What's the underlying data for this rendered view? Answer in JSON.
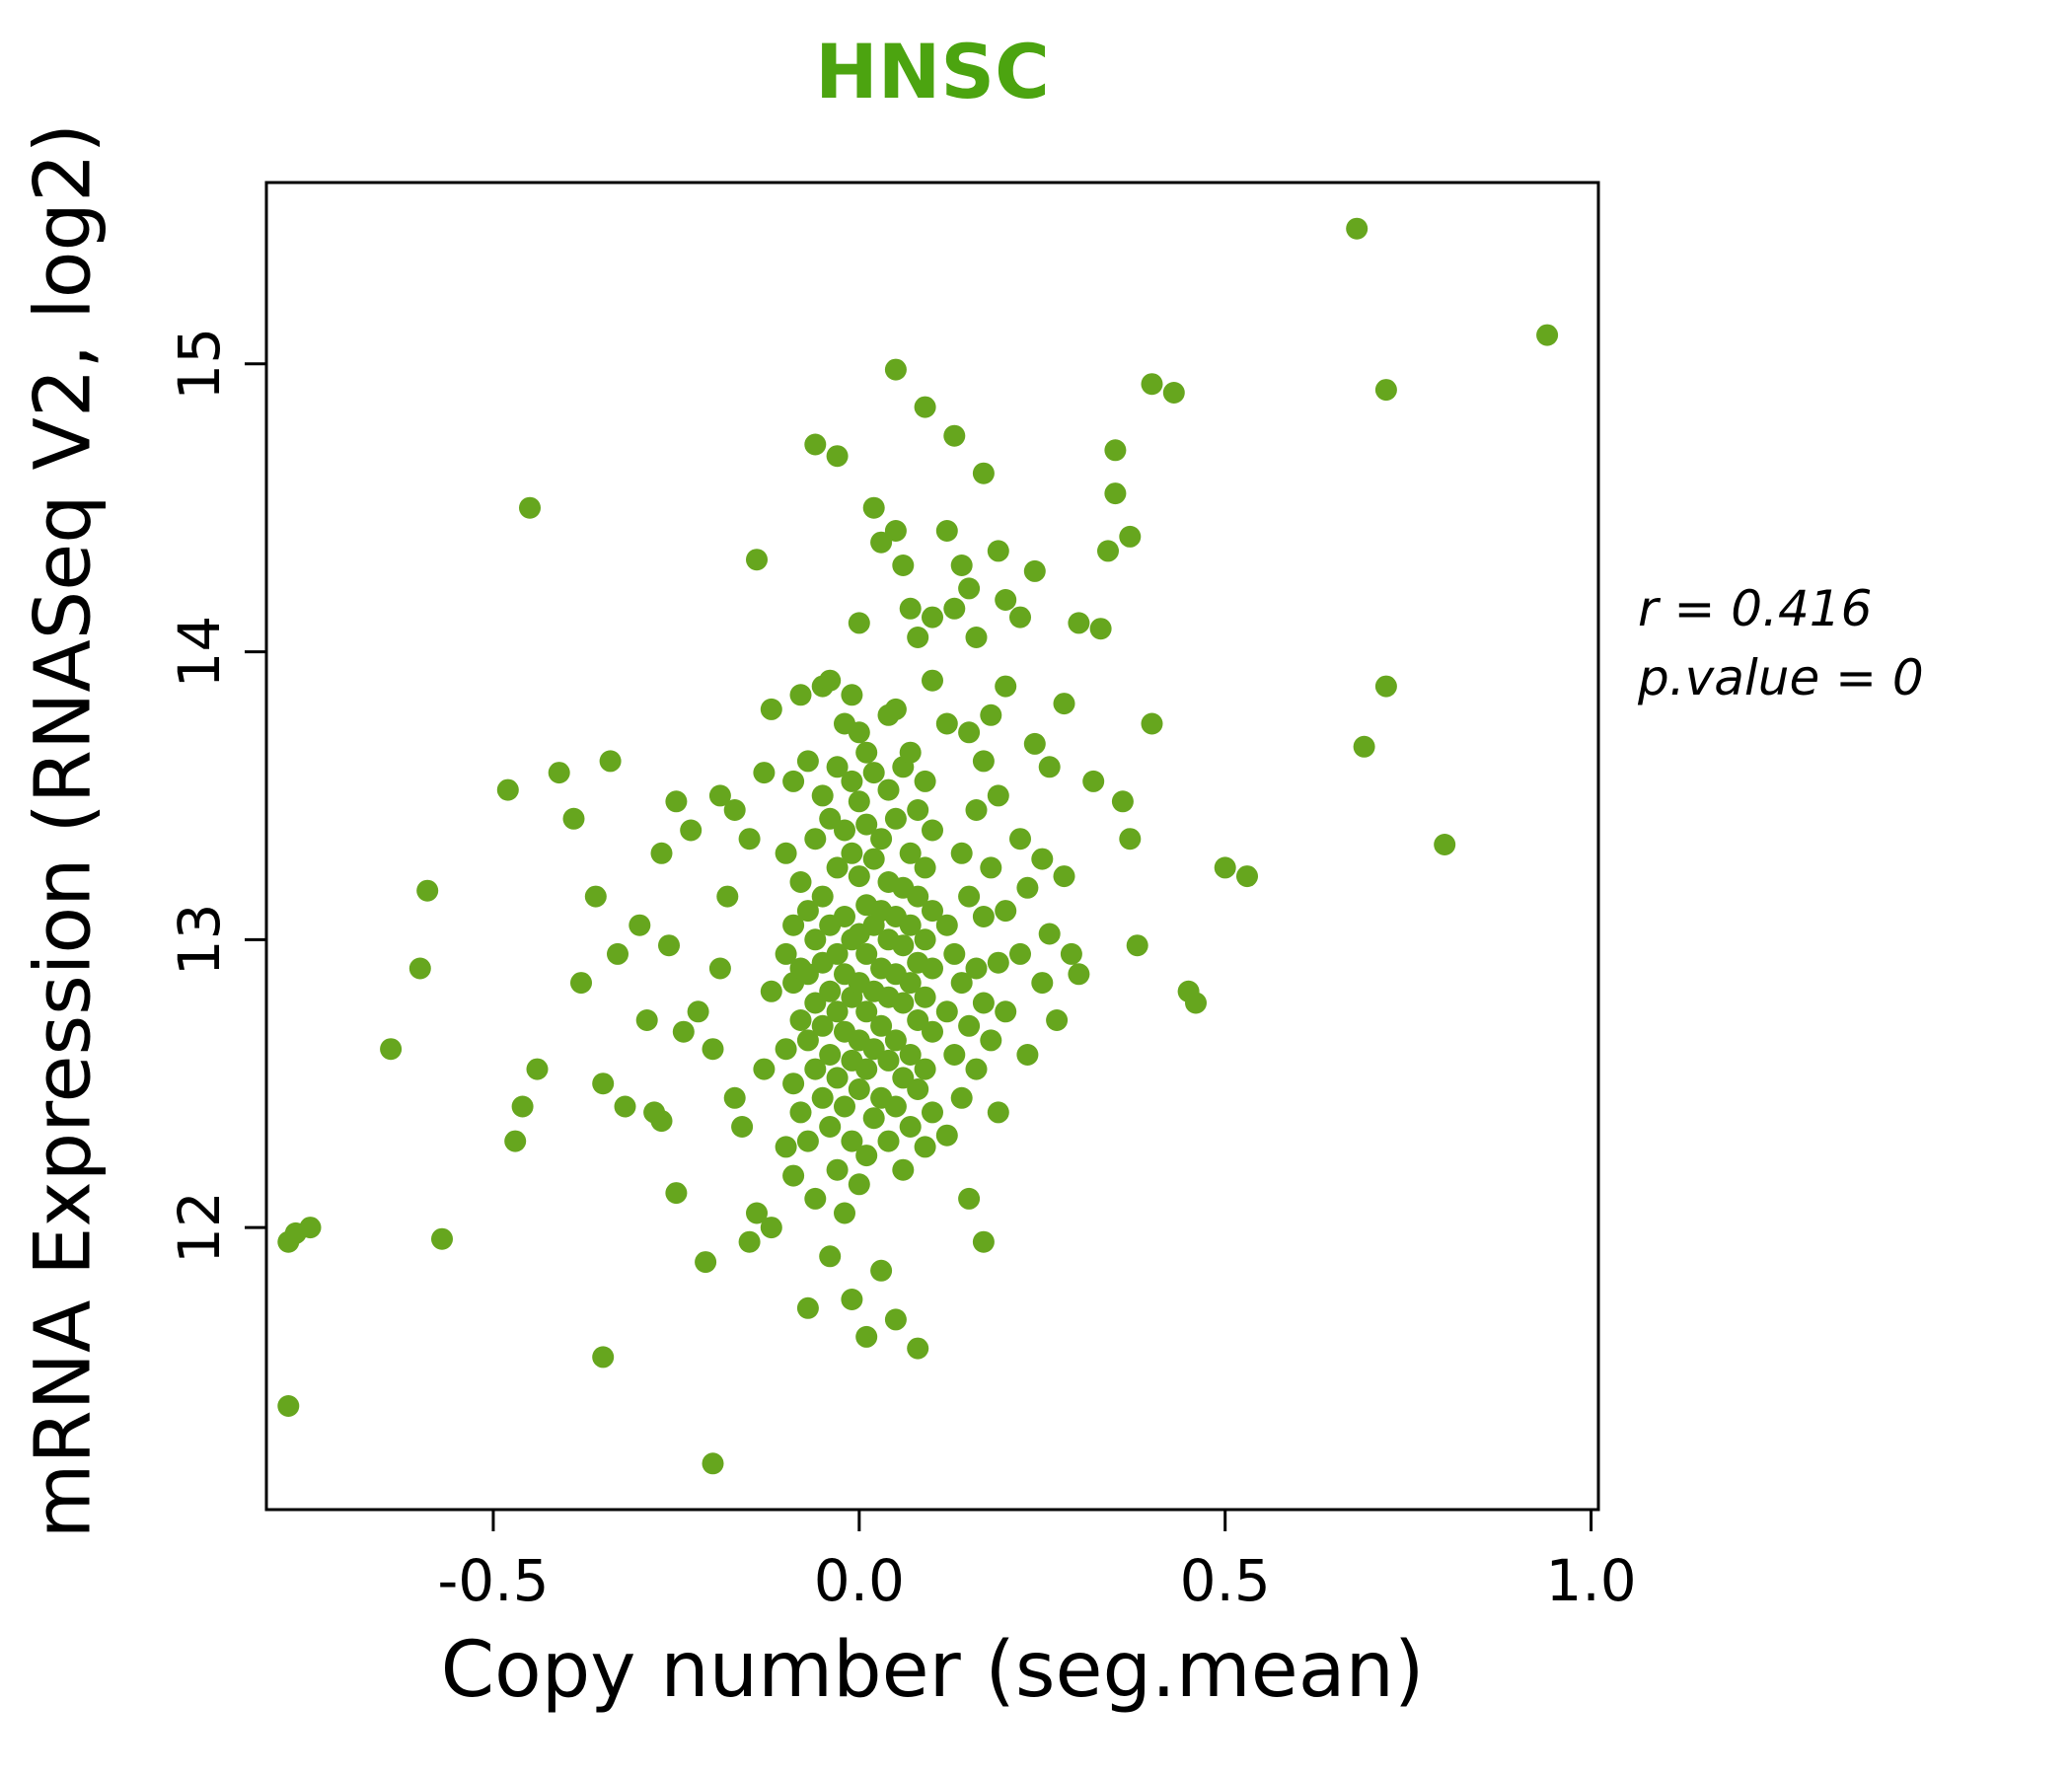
{
  "chart_data": {
    "type": "scatter",
    "title": "HNSC",
    "xlabel": "Copy number (seg.mean)",
    "ylabel": "mRNA Expression (RNASeq V2, log2)",
    "xlim": [
      -0.81,
      1.01
    ],
    "ylim": [
      11.02,
      15.63
    ],
    "grid": false,
    "x_ticks": {
      "values": [
        -0.5,
        0.0,
        0.5,
        1.0
      ],
      "labels": [
        "-0.5",
        "0.0",
        "0.5",
        "1.0"
      ]
    },
    "y_ticks": {
      "values": [
        12,
        13,
        14,
        15
      ],
      "labels": [
        "12",
        "13",
        "14",
        "15"
      ]
    },
    "annotation": {
      "r_text": "r = 0.416",
      "p_text": "p.value = 0"
    },
    "point_color": "#66A61E",
    "title_color": "#4CA410",
    "points": [
      [
        -0.78,
        11.38
      ],
      [
        -0.78,
        11.95
      ],
      [
        -0.77,
        11.98
      ],
      [
        -0.75,
        12.0
      ],
      [
        -0.64,
        12.62
      ],
      [
        -0.6,
        12.9
      ],
      [
        -0.59,
        13.17
      ],
      [
        -0.57,
        11.96
      ],
      [
        -0.48,
        13.52
      ],
      [
        -0.47,
        12.3
      ],
      [
        -0.46,
        12.42
      ],
      [
        -0.45,
        14.5
      ],
      [
        -0.44,
        12.55
      ],
      [
        -0.41,
        13.58
      ],
      [
        -0.39,
        13.42
      ],
      [
        -0.38,
        12.85
      ],
      [
        -0.36,
        13.15
      ],
      [
        -0.35,
        11.55
      ],
      [
        -0.35,
        12.5
      ],
      [
        -0.34,
        13.62
      ],
      [
        -0.33,
        12.95
      ],
      [
        -0.32,
        12.42
      ],
      [
        -0.3,
        13.05
      ],
      [
        -0.29,
        12.72
      ],
      [
        -0.28,
        12.4
      ],
      [
        -0.27,
        12.37
      ],
      [
        -0.27,
        13.3
      ],
      [
        -0.26,
        12.98
      ],
      [
        -0.25,
        13.48
      ],
      [
        -0.25,
        12.12
      ],
      [
        -0.24,
        12.68
      ],
      [
        -0.23,
        13.38
      ],
      [
        -0.22,
        12.75
      ],
      [
        -0.21,
        11.88
      ],
      [
        -0.2,
        12.62
      ],
      [
        -0.2,
        11.18
      ],
      [
        -0.19,
        13.5
      ],
      [
        -0.19,
        12.9
      ],
      [
        -0.18,
        13.15
      ],
      [
        -0.17,
        12.45
      ],
      [
        -0.17,
        13.45
      ],
      [
        -0.16,
        12.35
      ],
      [
        -0.15,
        11.95
      ],
      [
        -0.15,
        13.35
      ],
      [
        -0.14,
        14.32
      ],
      [
        -0.14,
        12.05
      ],
      [
        -0.13,
        13.58
      ],
      [
        -0.13,
        12.55
      ],
      [
        -0.12,
        12.0
      ],
      [
        -0.12,
        13.8
      ],
      [
        -0.12,
        12.82
      ],
      [
        -0.1,
        12.28
      ],
      [
        -0.1,
        12.62
      ],
      [
        -0.1,
        12.95
      ],
      [
        -0.1,
        13.3
      ],
      [
        -0.09,
        12.18
      ],
      [
        -0.09,
        12.5
      ],
      [
        -0.09,
        12.85
      ],
      [
        -0.09,
        13.05
      ],
      [
        -0.09,
        13.55
      ],
      [
        -0.08,
        12.4
      ],
      [
        -0.08,
        12.72
      ],
      [
        -0.08,
        12.9
      ],
      [
        -0.08,
        13.2
      ],
      [
        -0.08,
        13.85
      ],
      [
        -0.07,
        11.72
      ],
      [
        -0.07,
        12.3
      ],
      [
        -0.07,
        12.65
      ],
      [
        -0.07,
        12.88
      ],
      [
        -0.07,
        13.1
      ],
      [
        -0.07,
        13.62
      ],
      [
        -0.06,
        12.1
      ],
      [
        -0.06,
        12.55
      ],
      [
        -0.06,
        12.78
      ],
      [
        -0.06,
        13.0
      ],
      [
        -0.06,
        13.35
      ],
      [
        -0.06,
        14.72
      ],
      [
        -0.05,
        12.45
      ],
      [
        -0.05,
        12.7
      ],
      [
        -0.05,
        12.92
      ],
      [
        -0.05,
        13.15
      ],
      [
        -0.05,
        13.5
      ],
      [
        -0.05,
        13.88
      ],
      [
        -0.04,
        11.9
      ],
      [
        -0.04,
        12.35
      ],
      [
        -0.04,
        12.6
      ],
      [
        -0.04,
        12.82
      ],
      [
        -0.04,
        13.05
      ],
      [
        -0.04,
        13.42
      ],
      [
        -0.04,
        13.9
      ],
      [
        -0.03,
        12.2
      ],
      [
        -0.03,
        12.52
      ],
      [
        -0.03,
        12.75
      ],
      [
        -0.03,
        12.95
      ],
      [
        -0.03,
        13.25
      ],
      [
        -0.03,
        13.6
      ],
      [
        -0.03,
        14.68
      ],
      [
        -0.02,
        12.05
      ],
      [
        -0.02,
        12.42
      ],
      [
        -0.02,
        12.68
      ],
      [
        -0.02,
        12.88
      ],
      [
        -0.02,
        13.08
      ],
      [
        -0.02,
        13.38
      ],
      [
        -0.02,
        13.75
      ],
      [
        -0.01,
        11.75
      ],
      [
        -0.01,
        12.3
      ],
      [
        -0.01,
        12.58
      ],
      [
        -0.01,
        12.8
      ],
      [
        -0.01,
        13.0
      ],
      [
        -0.01,
        13.3
      ],
      [
        -0.01,
        13.55
      ],
      [
        -0.01,
        13.85
      ],
      [
        0.0,
        12.15
      ],
      [
        0.0,
        12.48
      ],
      [
        0.0,
        12.65
      ],
      [
        0.0,
        12.85
      ],
      [
        0.0,
        13.02
      ],
      [
        0.0,
        13.22
      ],
      [
        0.0,
        13.48
      ],
      [
        0.0,
        13.72
      ],
      [
        0.0,
        14.1
      ],
      [
        0.01,
        11.62
      ],
      [
        0.01,
        12.25
      ],
      [
        0.01,
        12.55
      ],
      [
        0.01,
        12.75
      ],
      [
        0.01,
        12.95
      ],
      [
        0.01,
        13.12
      ],
      [
        0.01,
        13.4
      ],
      [
        0.01,
        13.65
      ],
      [
        0.02,
        12.38
      ],
      [
        0.02,
        12.62
      ],
      [
        0.02,
        12.82
      ],
      [
        0.02,
        13.05
      ],
      [
        0.02,
        13.28
      ],
      [
        0.02,
        13.58
      ],
      [
        0.02,
        14.5
      ],
      [
        0.03,
        11.85
      ],
      [
        0.03,
        12.45
      ],
      [
        0.03,
        12.7
      ],
      [
        0.03,
        12.9
      ],
      [
        0.03,
        13.1
      ],
      [
        0.03,
        13.35
      ],
      [
        0.03,
        14.38
      ],
      [
        0.04,
        12.3
      ],
      [
        0.04,
        12.58
      ],
      [
        0.04,
        12.8
      ],
      [
        0.04,
        13.0
      ],
      [
        0.04,
        13.2
      ],
      [
        0.04,
        13.52
      ],
      [
        0.04,
        13.78
      ],
      [
        0.05,
        11.68
      ],
      [
        0.05,
        12.42
      ],
      [
        0.05,
        12.65
      ],
      [
        0.05,
        12.88
      ],
      [
        0.05,
        13.08
      ],
      [
        0.05,
        13.42
      ],
      [
        0.05,
        13.8
      ],
      [
        0.05,
        14.42
      ],
      [
        0.05,
        14.98
      ],
      [
        0.06,
        12.2
      ],
      [
        0.06,
        12.52
      ],
      [
        0.06,
        12.78
      ],
      [
        0.06,
        12.98
      ],
      [
        0.06,
        13.18
      ],
      [
        0.06,
        13.6
      ],
      [
        0.06,
        14.3
      ],
      [
        0.07,
        12.35
      ],
      [
        0.07,
        12.6
      ],
      [
        0.07,
        12.85
      ],
      [
        0.07,
        13.05
      ],
      [
        0.07,
        13.3
      ],
      [
        0.07,
        13.65
      ],
      [
        0.07,
        14.15
      ],
      [
        0.08,
        11.58
      ],
      [
        0.08,
        12.48
      ],
      [
        0.08,
        12.72
      ],
      [
        0.08,
        12.92
      ],
      [
        0.08,
        13.15
      ],
      [
        0.08,
        13.45
      ],
      [
        0.08,
        14.05
      ],
      [
        0.09,
        12.28
      ],
      [
        0.09,
        12.55
      ],
      [
        0.09,
        12.8
      ],
      [
        0.09,
        13.0
      ],
      [
        0.09,
        13.25
      ],
      [
        0.09,
        13.55
      ],
      [
        0.09,
        14.85
      ],
      [
        0.1,
        12.4
      ],
      [
        0.1,
        12.68
      ],
      [
        0.1,
        12.9
      ],
      [
        0.1,
        13.1
      ],
      [
        0.1,
        13.38
      ],
      [
        0.1,
        13.9
      ],
      [
        0.1,
        14.12
      ],
      [
        0.12,
        12.32
      ],
      [
        0.12,
        12.75
      ],
      [
        0.12,
        13.05
      ],
      [
        0.12,
        13.75
      ],
      [
        0.12,
        14.42
      ],
      [
        0.13,
        12.6
      ],
      [
        0.13,
        12.95
      ],
      [
        0.13,
        14.15
      ],
      [
        0.13,
        14.75
      ],
      [
        0.14,
        12.45
      ],
      [
        0.14,
        12.85
      ],
      [
        0.14,
        13.3
      ],
      [
        0.14,
        14.3
      ],
      [
        0.15,
        12.1
      ],
      [
        0.15,
        12.7
      ],
      [
        0.15,
        13.15
      ],
      [
        0.15,
        13.72
      ],
      [
        0.15,
        14.22
      ],
      [
        0.16,
        12.55
      ],
      [
        0.16,
        12.9
      ],
      [
        0.16,
        13.45
      ],
      [
        0.16,
        14.05
      ],
      [
        0.17,
        11.95
      ],
      [
        0.17,
        12.78
      ],
      [
        0.17,
        13.08
      ],
      [
        0.17,
        13.62
      ],
      [
        0.17,
        14.62
      ],
      [
        0.18,
        12.65
      ],
      [
        0.18,
        13.25
      ],
      [
        0.18,
        13.78
      ],
      [
        0.19,
        12.4
      ],
      [
        0.19,
        12.92
      ],
      [
        0.19,
        13.5
      ],
      [
        0.19,
        14.35
      ],
      [
        0.2,
        12.75
      ],
      [
        0.2,
        13.1
      ],
      [
        0.2,
        13.88
      ],
      [
        0.2,
        14.18
      ],
      [
        0.22,
        12.95
      ],
      [
        0.22,
        13.35
      ],
      [
        0.22,
        14.12
      ],
      [
        0.23,
        12.6
      ],
      [
        0.23,
        13.18
      ],
      [
        0.24,
        13.68
      ],
      [
        0.24,
        14.28
      ],
      [
        0.25,
        12.85
      ],
      [
        0.25,
        13.28
      ],
      [
        0.26,
        13.02
      ],
      [
        0.26,
        13.6
      ],
      [
        0.27,
        12.72
      ],
      [
        0.28,
        13.22
      ],
      [
        0.28,
        13.82
      ],
      [
        0.29,
        12.95
      ],
      [
        0.3,
        14.1
      ],
      [
        0.3,
        12.88
      ],
      [
        0.32,
        13.55
      ],
      [
        0.33,
        14.08
      ],
      [
        0.34,
        14.35
      ],
      [
        0.35,
        14.7
      ],
      [
        0.35,
        14.55
      ],
      [
        0.36,
        13.48
      ],
      [
        0.37,
        14.4
      ],
      [
        0.37,
        13.35
      ],
      [
        0.38,
        12.98
      ],
      [
        0.4,
        14.93
      ],
      [
        0.4,
        13.75
      ],
      [
        0.43,
        14.9
      ],
      [
        0.45,
        12.82
      ],
      [
        0.46,
        12.78
      ],
      [
        0.5,
        13.25
      ],
      [
        0.53,
        13.22
      ],
      [
        0.68,
        15.47
      ],
      [
        0.72,
        14.91
      ],
      [
        0.72,
        13.88
      ],
      [
        0.69,
        13.67
      ],
      [
        0.8,
        13.33
      ],
      [
        0.94,
        15.1
      ]
    ]
  }
}
